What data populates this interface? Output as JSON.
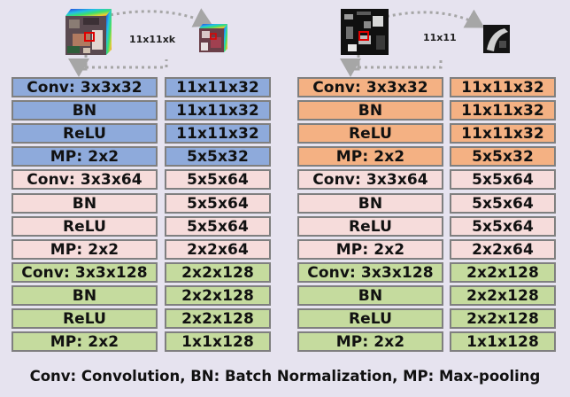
{
  "left_panel": {
    "size_label": "11x11xk",
    "colors": {
      "block1": "#8eaadb",
      "block2": "#f6dcdb",
      "block3": "#c5db9e"
    },
    "layers": [
      {
        "name": "Conv: 3x3x32",
        "output": "11x11x32"
      },
      {
        "name": "BN",
        "output": "11x11x32"
      },
      {
        "name": "ReLU",
        "output": "11x11x32"
      },
      {
        "name": "MP: 2x2",
        "output": "5x5x32"
      },
      {
        "name": "Conv: 3x3x64",
        "output": "5x5x64"
      },
      {
        "name": "BN",
        "output": "5x5x64"
      },
      {
        "name": "ReLU",
        "output": "5x5x64"
      },
      {
        "name": "MP: 2x2",
        "output": "2x2x64"
      },
      {
        "name": "Conv: 3x3x128",
        "output": "2x2x128"
      },
      {
        "name": "BN",
        "output": "2x2x128"
      },
      {
        "name": "ReLU",
        "output": "2x2x128"
      },
      {
        "name": "MP: 2x2",
        "output": "1x1x128"
      }
    ]
  },
  "right_panel": {
    "size_label": "11x11",
    "colors": {
      "block1": "#f4b183",
      "block2": "#f6dcdb",
      "block3": "#c5db9e"
    },
    "layers": [
      {
        "name": "Conv: 3x3x32",
        "output": "11x11x32"
      },
      {
        "name": "BN",
        "output": "11x11x32"
      },
      {
        "name": "ReLU",
        "output": "11x11x32"
      },
      {
        "name": "MP: 2x2",
        "output": "5x5x32"
      },
      {
        "name": "Conv: 3x3x64",
        "output": "5x5x64"
      },
      {
        "name": "BN",
        "output": "5x5x64"
      },
      {
        "name": "ReLU",
        "output": "5x5x64"
      },
      {
        "name": "MP: 2x2",
        "output": "2x2x64"
      },
      {
        "name": "Conv: 3x3x128",
        "output": "2x2x128"
      },
      {
        "name": "BN",
        "output": "2x2x128"
      },
      {
        "name": "ReLU",
        "output": "2x2x128"
      },
      {
        "name": "MP: 2x2",
        "output": "1x1x128"
      }
    ]
  },
  "caption": "Conv: Convolution,  BN: Batch Normalization,  MP: Max-pooling"
}
